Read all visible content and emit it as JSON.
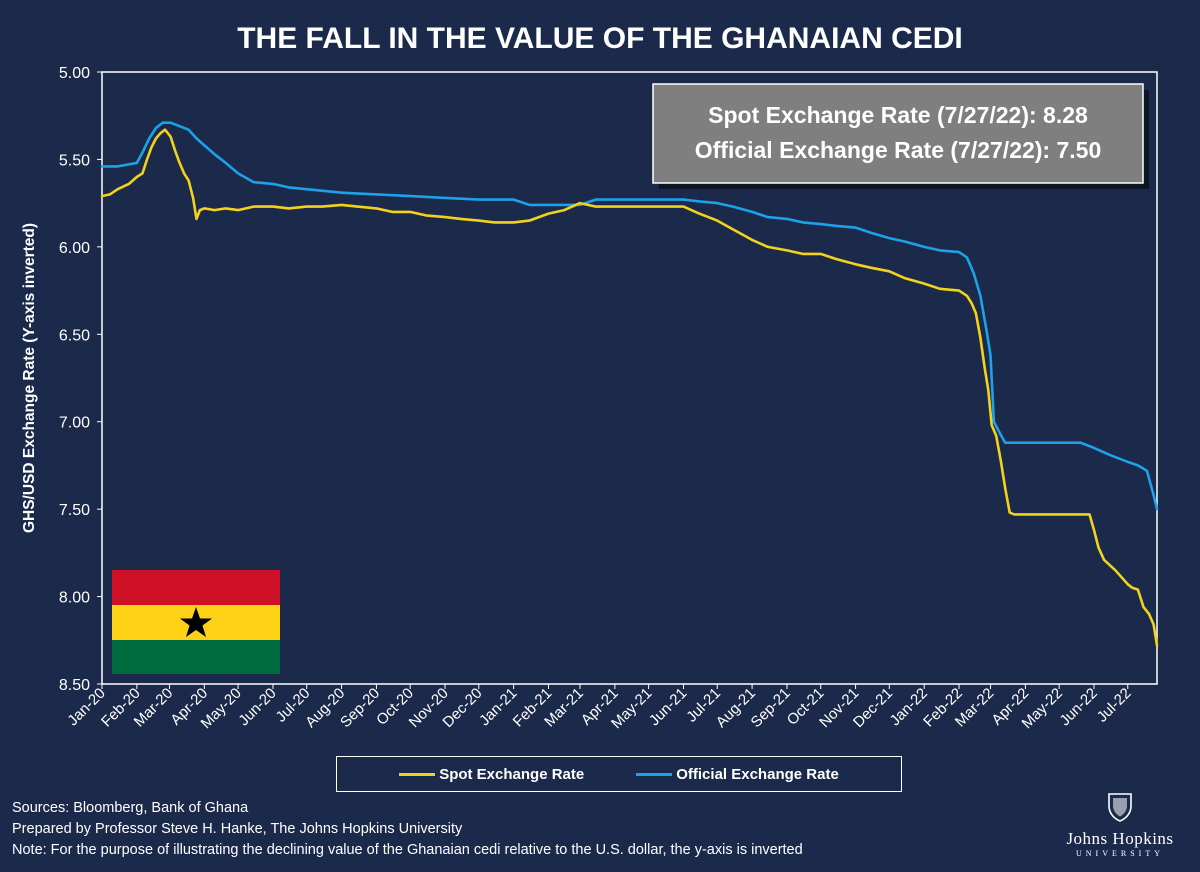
{
  "chart_data": {
    "type": "line",
    "title": "THE FALL IN THE VALUE OF THE GHANAIAN CEDI",
    "ylabel": "GHS/USD Exchange Rate (Y-axis inverted)",
    "xlabel": "",
    "y_inverted": true,
    "ylim": [
      5.0,
      8.5
    ],
    "yticks": [
      "5.00",
      "5.50",
      "6.00",
      "6.50",
      "7.00",
      "7.50",
      "8.00",
      "8.50"
    ],
    "xticks": [
      "Jan-20",
      "Feb-20",
      "Mar-20",
      "Apr-20",
      "May-20",
      "Jun-20",
      "Jul-20",
      "Aug-20",
      "Sep-20",
      "Oct-20",
      "Nov-20",
      "Dec-20",
      "Jan-21",
      "Feb-21",
      "Mar-21",
      "Apr-21",
      "May-21",
      "Jun-21",
      "Jul-21",
      "Aug-21",
      "Sep-21",
      "Oct-21",
      "Nov-21",
      "Dec-21",
      "Jan-22",
      "Feb-22",
      "Mar-22",
      "Apr-22",
      "May-22",
      "Jun-22",
      "Jul-22"
    ],
    "x_range": [
      "2020-01-01",
      "2022-07-27"
    ],
    "grid": false,
    "legend_position": "bottom",
    "series": [
      {
        "name": "Spot Exchange Rate",
        "color": "#f2d21b",
        "x": [
          "2020-01-01",
          "2020-01-08",
          "2020-01-15",
          "2020-01-25",
          "2020-02-01",
          "2020-02-06",
          "2020-02-10",
          "2020-02-14",
          "2020-02-18",
          "2020-02-22",
          "2020-02-26",
          "2020-03-02",
          "2020-03-06",
          "2020-03-10",
          "2020-03-14",
          "2020-03-18",
          "2020-03-22",
          "2020-03-25",
          "2020-03-28",
          "2020-04-01",
          "2020-04-10",
          "2020-04-20",
          "2020-05-01",
          "2020-05-15",
          "2020-06-01",
          "2020-06-15",
          "2020-07-01",
          "2020-07-15",
          "2020-08-01",
          "2020-08-15",
          "2020-09-01",
          "2020-09-15",
          "2020-10-01",
          "2020-10-15",
          "2020-11-01",
          "2020-11-15",
          "2020-12-01",
          "2020-12-15",
          "2021-01-01",
          "2021-01-15",
          "2021-02-01",
          "2021-02-15",
          "2021-03-01",
          "2021-03-15",
          "2021-04-01",
          "2021-04-15",
          "2021-05-01",
          "2021-05-15",
          "2021-06-01",
          "2021-06-15",
          "2021-07-01",
          "2021-07-15",
          "2021-08-01",
          "2021-08-15",
          "2021-09-01",
          "2021-09-15",
          "2021-10-01",
          "2021-10-15",
          "2021-11-01",
          "2021-11-15",
          "2021-12-01",
          "2021-12-15",
          "2022-01-01",
          "2022-01-15",
          "2022-02-01",
          "2022-02-08",
          "2022-02-12",
          "2022-02-16",
          "2022-02-20",
          "2022-02-24",
          "2022-02-27",
          "2022-03-02",
          "2022-03-06",
          "2022-03-10",
          "2022-03-14",
          "2022-03-18",
          "2022-03-22",
          "2022-03-28",
          "2022-04-05",
          "2022-04-15",
          "2022-05-01",
          "2022-05-15",
          "2022-05-28",
          "2022-06-01",
          "2022-06-05",
          "2022-06-10",
          "2022-06-20",
          "2022-07-01",
          "2022-07-05",
          "2022-07-10",
          "2022-07-15",
          "2022-07-20",
          "2022-07-24",
          "2022-07-27"
        ],
        "y": [
          5.71,
          5.7,
          5.67,
          5.64,
          5.6,
          5.58,
          5.5,
          5.43,
          5.38,
          5.35,
          5.33,
          5.37,
          5.45,
          5.52,
          5.58,
          5.62,
          5.72,
          5.84,
          5.79,
          5.78,
          5.79,
          5.78,
          5.79,
          5.77,
          5.77,
          5.78,
          5.77,
          5.77,
          5.76,
          5.77,
          5.78,
          5.8,
          5.8,
          5.82,
          5.83,
          5.84,
          5.85,
          5.86,
          5.86,
          5.85,
          5.81,
          5.79,
          5.75,
          5.77,
          5.77,
          5.77,
          5.77,
          5.77,
          5.77,
          5.81,
          5.85,
          5.9,
          5.96,
          6.0,
          6.02,
          6.04,
          6.04,
          6.07,
          6.1,
          6.12,
          6.14,
          6.18,
          6.21,
          6.24,
          6.25,
          6.28,
          6.32,
          6.38,
          6.52,
          6.7,
          6.82,
          7.02,
          7.08,
          7.22,
          7.38,
          7.52,
          7.53,
          7.53,
          7.53,
          7.53,
          7.53,
          7.53,
          7.53,
          7.62,
          7.72,
          7.79,
          7.85,
          7.93,
          7.95,
          7.96,
          8.06,
          8.1,
          8.16,
          8.28
        ]
      },
      {
        "name": "Official Exchange Rate",
        "color": "#1da1e8",
        "x": [
          "2020-01-01",
          "2020-01-15",
          "2020-02-01",
          "2020-02-06",
          "2020-02-12",
          "2020-02-18",
          "2020-02-24",
          "2020-03-02",
          "2020-03-10",
          "2020-03-18",
          "2020-03-25",
          "2020-04-01",
          "2020-04-10",
          "2020-04-20",
          "2020-05-01",
          "2020-05-15",
          "2020-06-01",
          "2020-06-15",
          "2020-07-01",
          "2020-08-01",
          "2020-09-01",
          "2020-10-01",
          "2020-11-01",
          "2020-12-01",
          "2021-01-01",
          "2021-01-15",
          "2021-02-01",
          "2021-02-15",
          "2021-03-01",
          "2021-03-15",
          "2021-04-01",
          "2021-04-15",
          "2021-05-01",
          "2021-05-15",
          "2021-06-01",
          "2021-06-15",
          "2021-07-01",
          "2021-07-15",
          "2021-08-01",
          "2021-08-15",
          "2021-09-01",
          "2021-09-15",
          "2021-10-01",
          "2021-10-15",
          "2021-11-01",
          "2021-11-15",
          "2021-12-01",
          "2021-12-15",
          "2022-01-01",
          "2022-01-15",
          "2022-02-01",
          "2022-02-08",
          "2022-02-14",
          "2022-02-20",
          "2022-02-26",
          "2022-03-01",
          "2022-03-04",
          "2022-03-08",
          "2022-03-14",
          "2022-04-01",
          "2022-05-01",
          "2022-05-20",
          "2022-06-01",
          "2022-06-15",
          "2022-07-01",
          "2022-07-10",
          "2022-07-18",
          "2022-07-24",
          "2022-07-27"
        ],
        "y": [
          5.54,
          5.54,
          5.52,
          5.46,
          5.38,
          5.32,
          5.29,
          5.29,
          5.31,
          5.33,
          5.38,
          5.42,
          5.47,
          5.52,
          5.58,
          5.63,
          5.64,
          5.66,
          5.67,
          5.69,
          5.7,
          5.71,
          5.72,
          5.73,
          5.73,
          5.76,
          5.76,
          5.76,
          5.76,
          5.73,
          5.73,
          5.73,
          5.73,
          5.73,
          5.73,
          5.74,
          5.75,
          5.77,
          5.8,
          5.83,
          5.84,
          5.86,
          5.87,
          5.88,
          5.89,
          5.92,
          5.95,
          5.97,
          6.0,
          6.02,
          6.03,
          6.06,
          6.15,
          6.28,
          6.5,
          6.62,
          7.0,
          7.05,
          7.12,
          7.12,
          7.12,
          7.12,
          7.15,
          7.19,
          7.23,
          7.25,
          7.28,
          7.42,
          7.5
        ]
      }
    ],
    "annotation": {
      "line1": "Spot Exchange Rate (7/27/22): 8.28",
      "line2": "Official Exchange Rate (7/27/22): 7.50"
    }
  },
  "notes": {
    "line1": "Sources: Bloomberg, Bank of Ghana",
    "line2": "Prepared by Professor Steve H. Hanke, The Johns Hopkins University",
    "line3": "Note: For the purpose of illustrating the declining value of the Ghanaian cedi relative to the U.S. dollar, the y-axis is inverted"
  },
  "logo": {
    "name": "Johns Hopkins",
    "sub": "UNIVERSITY"
  },
  "flag": {
    "colors": [
      "#ce1126",
      "#fcd116",
      "#006b3f"
    ],
    "star_color": "#000000"
  },
  "colors": {
    "background": "#1b2a4a",
    "plot_border": "#ffffff"
  }
}
